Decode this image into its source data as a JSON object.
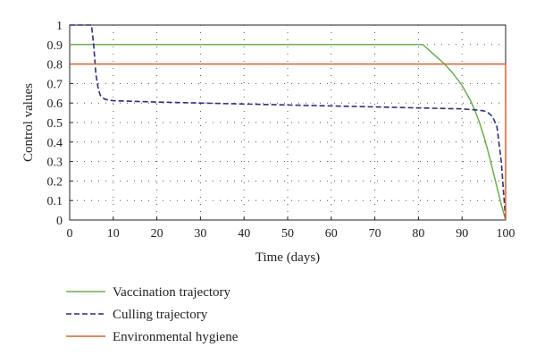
{
  "chart_data": {
    "type": "line",
    "title": "",
    "xlabel": "Time (days)",
    "ylabel": "Control values",
    "xlim": [
      0,
      100
    ],
    "ylim": [
      0,
      1
    ],
    "xticks": [
      "0",
      "10",
      "20",
      "30",
      "40",
      "50",
      "60",
      "70",
      "80",
      "90",
      "100"
    ],
    "yticks": [
      "0",
      "0.1",
      "0.2",
      "0.3",
      "0.4",
      "0.5",
      "0.6",
      "0.7",
      "0.8",
      "0.9",
      "1"
    ],
    "grid": true,
    "legend_position": "bottom-left-outside",
    "series": [
      {
        "name": "Vaccination trajectory",
        "color": "#6ab04c",
        "style": "solid",
        "x": [
          0,
          80,
          81,
          82,
          83,
          84,
          85,
          86,
          87,
          88,
          89,
          90,
          91,
          92,
          93,
          94,
          95,
          96,
          97,
          98,
          99,
          100
        ],
        "y": [
          0.9,
          0.9,
          0.9,
          0.88,
          0.86,
          0.84,
          0.82,
          0.8,
          0.775,
          0.75,
          0.72,
          0.69,
          0.65,
          0.61,
          0.56,
          0.5,
          0.43,
          0.35,
          0.26,
          0.17,
          0.08,
          0.0
        ]
      },
      {
        "name": "Culling trajectory",
        "color": "#2e2e80",
        "style": "dashed",
        "x": [
          0,
          5,
          5.5,
          6,
          6.5,
          7,
          8,
          9,
          10,
          20,
          30,
          40,
          50,
          60,
          70,
          80,
          90,
          93,
          95,
          96,
          97,
          98,
          99,
          100
        ],
        "y": [
          1.0,
          1.0,
          0.9,
          0.75,
          0.68,
          0.64,
          0.62,
          0.615,
          0.612,
          0.605,
          0.6,
          0.595,
          0.59,
          0.585,
          0.58,
          0.575,
          0.57,
          0.565,
          0.56,
          0.55,
          0.53,
          0.48,
          0.3,
          0.0
        ]
      },
      {
        "name": "Environmental hygiene",
        "color": "#d9622b",
        "style": "solid",
        "x": [
          0,
          100,
          100
        ],
        "y": [
          0.8,
          0.8,
          0.0
        ]
      }
    ]
  }
}
